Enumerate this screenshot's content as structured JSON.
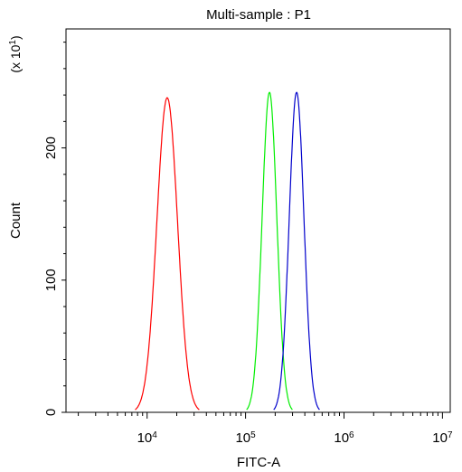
{
  "chart_data": {
    "type": "line",
    "title": "Multi-sample : P1",
    "xlabel": "FITC-A",
    "ylabel": "Count",
    "y_multiplier_label": "(x 10",
    "y_multiplier_exp": "1",
    "y_multiplier_close": ")",
    "x_scale": "log",
    "xlim": [
      1500,
      12000000
    ],
    "ylim": [
      0,
      290
    ],
    "grid": false,
    "x_ticks": [
      {
        "value": 10000,
        "base": "10",
        "exp": "4"
      },
      {
        "value": 100000,
        "base": "10",
        "exp": "5"
      },
      {
        "value": 1000000,
        "base": "10",
        "exp": "6"
      },
      {
        "value": 10000000,
        "base": "10",
        "exp": "7"
      }
    ],
    "y_ticks": [
      {
        "value": 0,
        "label": "0"
      },
      {
        "value": 100,
        "label": "100"
      },
      {
        "value": 200,
        "label": "200"
      }
    ],
    "series": [
      {
        "color": "#ff0000",
        "peak_x": 16000,
        "peak_y": 238,
        "sigma_log10": 0.105,
        "x": [
          7500,
          10000,
          12000,
          14000,
          16000,
          18000,
          21000,
          25000,
          32000
        ],
        "y": [
          0,
          31,
          122,
          208,
          238,
          215,
          125,
          40,
          0
        ]
      },
      {
        "color": "#00ee00",
        "peak_x": 175000,
        "peak_y": 242,
        "sigma_log10": 0.075,
        "x": [
          100000,
          125000,
          150000,
          175000,
          200000,
          230000,
          280000
        ],
        "y": [
          0,
          52,
          180,
          242,
          205,
          95,
          0
        ]
      },
      {
        "color": "#0000cc",
        "peak_x": 330000,
        "peak_y": 242,
        "sigma_log10": 0.075,
        "x": [
          190000,
          240000,
          290000,
          330000,
          380000,
          450000,
          600000
        ],
        "y": [
          0,
          60,
          200,
          242,
          205,
          90,
          0
        ]
      }
    ]
  }
}
